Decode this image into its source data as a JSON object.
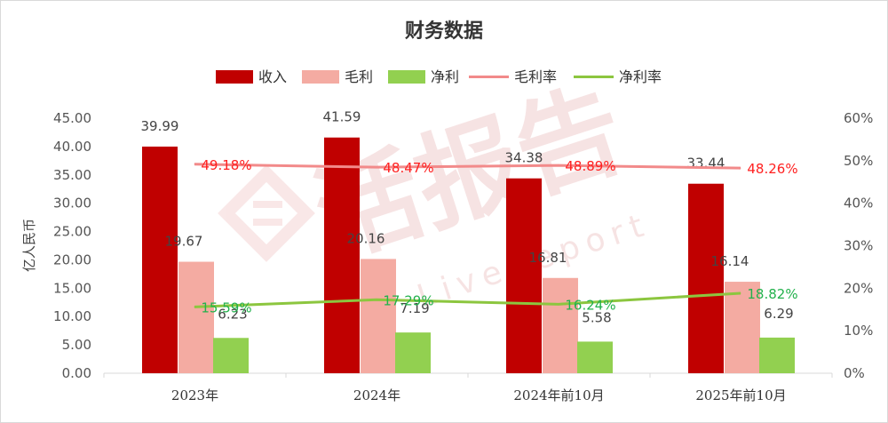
{
  "chart_data": {
    "type": "bar",
    "title": "财务数据",
    "ylabel": "亿人民币",
    "ylim": [
      0,
      45
    ],
    "y_ticks": [
      "0.00",
      "5.00",
      "10.00",
      "15.00",
      "20.00",
      "25.00",
      "30.00",
      "35.00",
      "40.00",
      "45.00"
    ],
    "y2lim": [
      0,
      60
    ],
    "y2_ticks": [
      "0%",
      "10%",
      "20%",
      "30%",
      "40%",
      "50%",
      "60%"
    ],
    "categories": [
      "2023年",
      "2024年",
      "2024年前10月",
      "2025年前10月"
    ],
    "series": [
      {
        "name": "收入",
        "kind": "bar",
        "color": "#c00000",
        "values": [
          39.99,
          41.59,
          34.38,
          33.44
        ],
        "labels": [
          "39.99",
          "41.59",
          "34.38",
          "33.44"
        ],
        "label_color": "#444444"
      },
      {
        "name": "毛利",
        "kind": "bar",
        "color": "#f4aba2",
        "values": [
          19.67,
          20.16,
          16.81,
          16.14
        ],
        "labels": [
          "19.67",
          "20.16",
          "16.81",
          "16.14"
        ],
        "label_color": "#444444"
      },
      {
        "name": "净利",
        "kind": "bar",
        "color": "#92d050",
        "values": [
          6.23,
          7.19,
          5.58,
          6.29
        ],
        "labels": [
          "6.23",
          "7.19",
          "5.58",
          "6.29"
        ],
        "label_color": "#444444"
      },
      {
        "name": "毛利率",
        "kind": "line",
        "axis": "right",
        "color": "#f28a8a",
        "label_color": "#ff2020",
        "values": [
          49.18,
          48.47,
          48.89,
          48.26
        ],
        "labels": [
          "49.18%",
          "48.47%",
          "48.89%",
          "48.26%"
        ]
      },
      {
        "name": "净利率",
        "kind": "line",
        "axis": "right",
        "color": "#8cc63f",
        "label_color": "#22b14c",
        "values": [
          15.59,
          17.29,
          16.24,
          18.82
        ],
        "labels": [
          "15.59%",
          "17.29%",
          "16.24%",
          "18.82%"
        ]
      }
    ],
    "legend_position": "top",
    "grid": false
  },
  "watermark": {
    "text": "活报告",
    "subtext": "LiveReport"
  }
}
